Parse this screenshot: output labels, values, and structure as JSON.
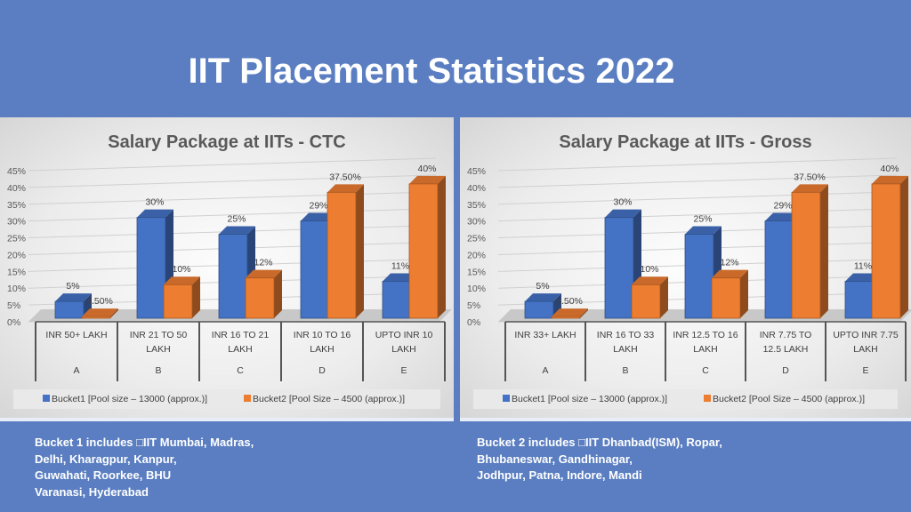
{
  "page_title": "IIT Placement Statistics 2022",
  "colors": {
    "bucket1": "#4472c4",
    "bucket2": "#ed7d31",
    "background": "#5a7ec1"
  },
  "chart_data": [
    {
      "type": "bar",
      "title": "Salary Package at IITs - CTC",
      "categories": [
        "A",
        "B",
        "C",
        "D",
        "E"
      ],
      "category_labels": [
        [
          "INR 50+ LAKH"
        ],
        [
          "INR 21 TO 50",
          "LAKH"
        ],
        [
          "INR 16 TO 21",
          "LAKH"
        ],
        [
          "INR 10 TO 16",
          "LAKH"
        ],
        [
          "UPTO INR 10",
          "LAKH"
        ]
      ],
      "ylim": [
        0,
        45
      ],
      "yticks": [
        "0%",
        "5%",
        "10%",
        "15%",
        "20%",
        "25%",
        "30%",
        "35%",
        "40%",
        "45%"
      ],
      "series": [
        {
          "name": "Bucket1 [Pool size – 13000 (approx.)]",
          "values": [
            5,
            30,
            25,
            29,
            11
          ],
          "labels": [
            "5%",
            "30%",
            "25%",
            "29%",
            "11%"
          ]
        },
        {
          "name": "Bucket2 [Pool Size – 4500 (approx.)]",
          "values": [
            0.5,
            10,
            12,
            37.5,
            40
          ],
          "labels": [
            "0.50%",
            "10%",
            "12%",
            "37.50%",
            "40%"
          ]
        }
      ],
      "legend": "bottom",
      "grid": true
    },
    {
      "type": "bar",
      "title": "Salary Package at IITs - Gross",
      "categories": [
        "A",
        "B",
        "C",
        "D",
        "E"
      ],
      "category_labels": [
        [
          "INR 33+ LAKH"
        ],
        [
          "INR 16 TO 33",
          "LAKH"
        ],
        [
          "INR 12.5 TO 16",
          "LAKH"
        ],
        [
          "INR 7.75 TO",
          "12.5 LAKH"
        ],
        [
          "UPTO INR 7.75",
          "LAKH"
        ]
      ],
      "ylim": [
        0,
        45
      ],
      "yticks": [
        "0%",
        "5%",
        "10%",
        "15%",
        "20%",
        "25%",
        "30%",
        "35%",
        "40%",
        "45%"
      ],
      "series": [
        {
          "name": "Bucket1 [Pool size – 13000 (approx.)]",
          "values": [
            5,
            30,
            25,
            29,
            11
          ],
          "labels": [
            "5%",
            "30%",
            "25%",
            "29%",
            "11%"
          ]
        },
        {
          "name": "Bucket2 [Pool Size – 4500 (approx.)]",
          "values": [
            0.5,
            10,
            12,
            37.5,
            40
          ],
          "labels": [
            "0.50%",
            "10%",
            "12%",
            "37.50%",
            "40%"
          ]
        }
      ],
      "legend": "bottom",
      "grid": true
    }
  ],
  "notes": {
    "bucket1": [
      "Bucket 1 includes □IIT Mumbai, Madras,",
      "Delhi, Kharagpur, Kanpur,",
      "Guwahati, Roorkee, BHU",
      "Varanasi, Hyderabad"
    ],
    "bucket2": [
      "Bucket 2 includes □IIT Dhanbad(ISM), Ropar,",
      "Bhubaneswar, Gandhinagar,",
      "Jodhpur, Patna, Indore, Mandi"
    ]
  }
}
